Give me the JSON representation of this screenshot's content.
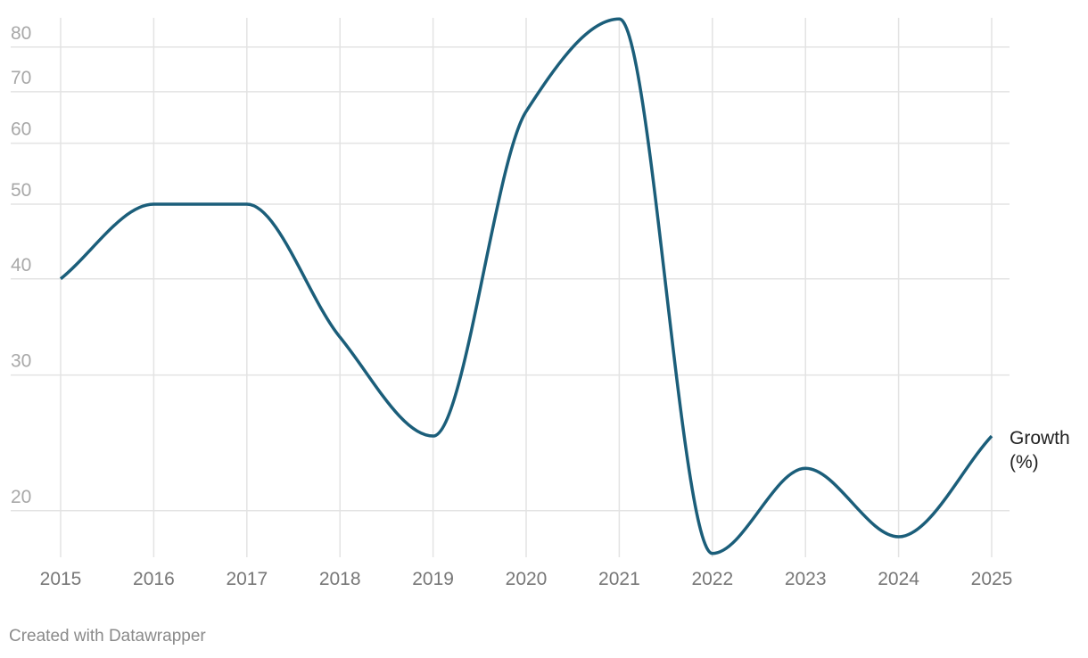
{
  "chart_data": {
    "type": "line",
    "categories": [
      "2015",
      "2016",
      "2017",
      "2018",
      "2019",
      "2020",
      "2021",
      "2022",
      "2023",
      "2024",
      "2025"
    ],
    "series": [
      {
        "name": "Growth (%)",
        "color": "#1b5e7a",
        "values": [
          40,
          50,
          50,
          33.6,
          25,
          66,
          87,
          17.6,
          22.7,
          18.5,
          25
        ]
      }
    ],
    "ylim": [
      17.4,
      88
    ],
    "yticks": [
      20,
      30,
      40,
      50,
      60,
      70,
      80
    ],
    "log_y": true,
    "grid": true,
    "credit": "Created with Datawrapper"
  }
}
